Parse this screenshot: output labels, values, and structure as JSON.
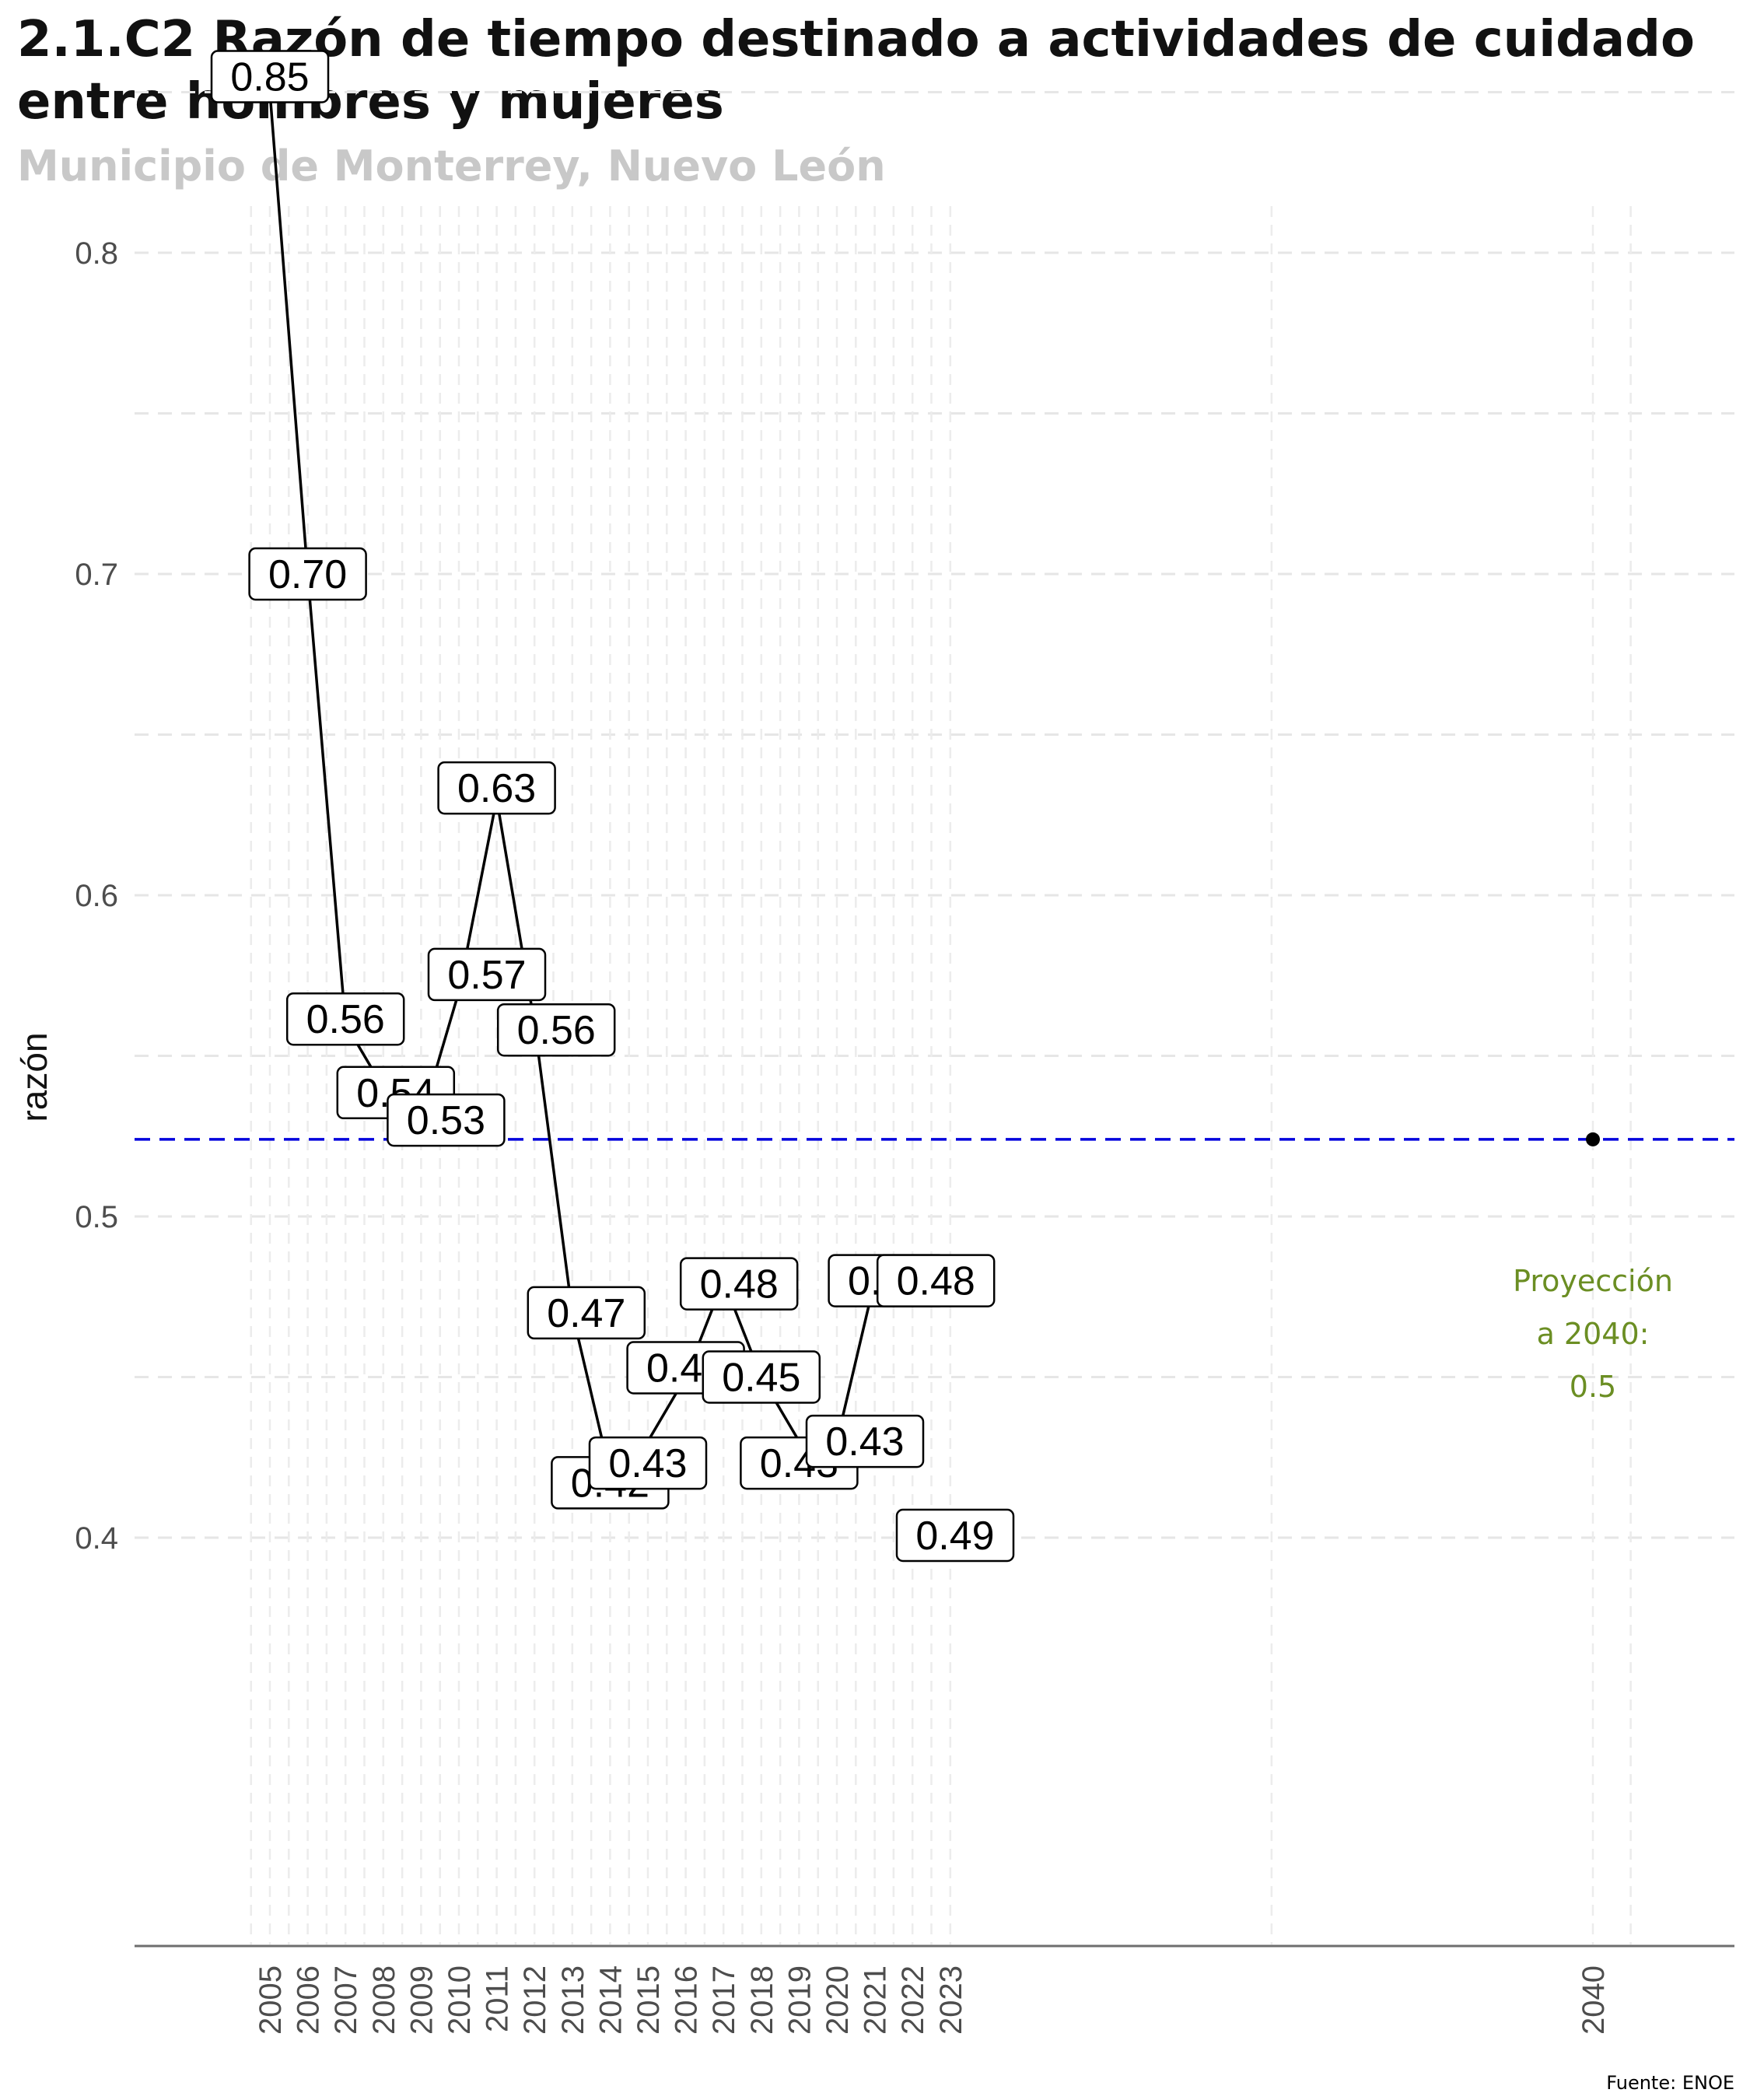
{
  "title_line1": "2.1.C2 Razón de tiempo destinado a actividades de cuidado",
  "title_line2": "entre hombres y mujeres",
  "subtitle": "Municipio de Monterrey, Nuevo León",
  "caption": "Fuente: ENOE",
  "chart_data": {
    "type": "line",
    "ylabel": "razón",
    "xlabel": "",
    "ylim": [
      0.36,
      0.88
    ],
    "xlim": [
      2002,
      2043
    ],
    "y_ticks": [
      "0.4",
      "0.5",
      "0.6",
      "0.7",
      "0.8"
    ],
    "x_ticks": [
      "2005",
      "2006",
      "2007",
      "2008",
      "2009",
      "2010",
      "2011",
      "2012",
      "2013",
      "2014",
      "2015",
      "2016",
      "2017",
      "2018",
      "2019",
      "2020",
      "2021",
      "2022",
      "2023",
      "2040"
    ],
    "grid": true,
    "series": [
      {
        "x": [
          2005,
          2006,
          2007,
          2008,
          2009,
          2010,
          2011,
          2012,
          2013,
          2014,
          2015,
          2016,
          2017,
          2018,
          2019,
          2020,
          2021,
          2022
        ],
        "values": [
          0.85,
          0.7,
          0.56,
          0.54,
          0.53,
          0.57,
          0.63,
          0.56,
          0.47,
          0.42,
          0.43,
          0.45,
          0.48,
          0.45,
          0.43,
          0.43,
          0.48,
          0.48
        ],
        "labels": [
          "0.85",
          "0.70",
          "0.56",
          "0.54",
          "0.53",
          "0.57",
          "0.63",
          "0.56",
          "0.47",
          "0.42",
          "0.43",
          "0.45",
          "0.48",
          "0.45",
          "0.43",
          "0.43",
          "0.48",
          "0.48"
        ]
      }
    ],
    "extra_label": "0.49",
    "reference_line": {
      "y": 0.524,
      "color": "#0000dd",
      "style": "dashed"
    },
    "projection": {
      "x": 2040,
      "y": 0.524,
      "text_lines": [
        "Proyección",
        "a 2040:",
        "0.5"
      ],
      "color": "#6b8e23"
    }
  }
}
